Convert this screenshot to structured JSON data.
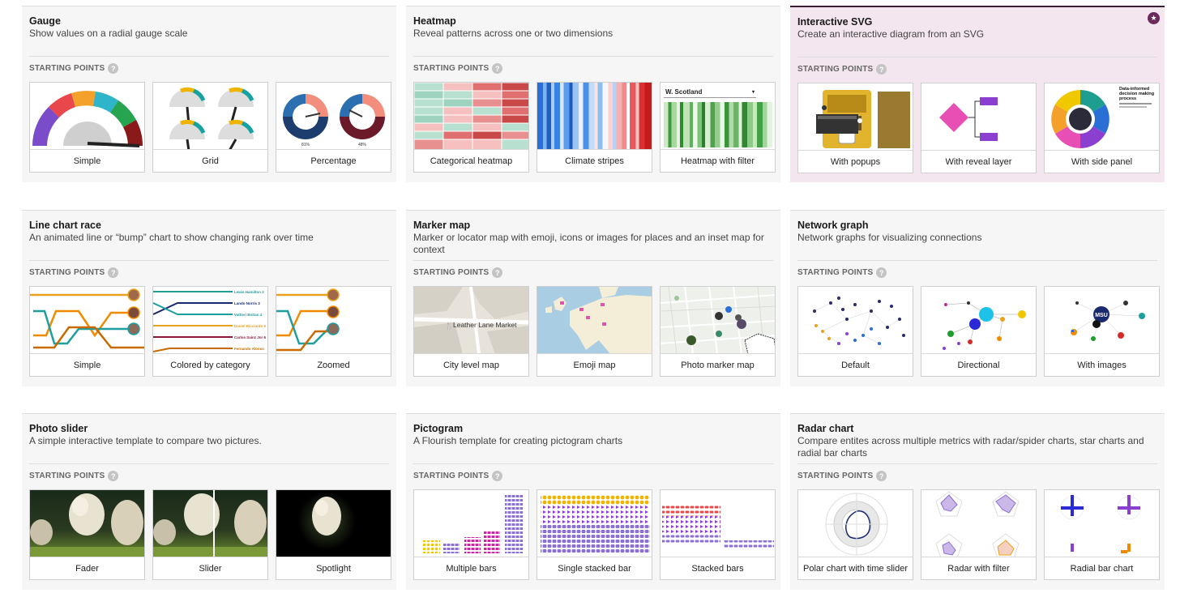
{
  "starting_points_label": "STARTING POINTS",
  "help_glyph": "?",
  "templates": [
    {
      "title": "Gauge",
      "description": "Show values on a radial gauge scale",
      "thumbs": [
        {
          "label": "Simple"
        },
        {
          "label": "Grid"
        },
        {
          "label": "Percentage",
          "values": [
            "81%",
            "48%"
          ]
        }
      ]
    },
    {
      "title": "Heatmap",
      "description": "Reveal patterns across one or two dimensions",
      "thumbs": [
        {
          "label": "Categorical heatmap"
        },
        {
          "label": "Climate stripes"
        },
        {
          "label": "Heatmap with filter",
          "filter_value": "W. Scotland"
        }
      ]
    },
    {
      "title": "Interactive SVG",
      "description": "Create an interactive diagram from an SVG",
      "highlighted": true,
      "thumbs": [
        {
          "label": "With popups"
        },
        {
          "label": "With reveal layer"
        },
        {
          "label": "With side panel",
          "panel_title": "Data-informed decision making process"
        }
      ]
    },
    {
      "title": "Line chart race",
      "description": "An animated line or “bump” chart to show changing rank over time",
      "thumbs": [
        {
          "label": "Simple"
        },
        {
          "label": "Colored by category",
          "names": [
            "Lewis Hamilton 2",
            "Lando Norris 3",
            "Valtteri Bottas 4",
            "Daniel Ricciardo 5",
            "Carlos Sainz Jnr 6",
            "Fernando Alonso"
          ]
        },
        {
          "label": "Zoomed"
        }
      ]
    },
    {
      "title": "Marker map",
      "description": "Marker or locator map with emoji, icons or images for places and an inset map for context",
      "thumbs": [
        {
          "label": "City level map",
          "place": "Leather Lane Market"
        },
        {
          "label": "Emoji map"
        },
        {
          "label": "Photo marker map"
        }
      ]
    },
    {
      "title": "Network graph",
      "description": "Network graphs for visualizing connections",
      "thumbs": [
        {
          "label": "Default"
        },
        {
          "label": "Directional"
        },
        {
          "label": "With images",
          "logo_text": "MSU"
        }
      ]
    },
    {
      "title": "Photo slider",
      "description": "A simple interactive template to compare two pictures.",
      "thumbs": [
        {
          "label": "Fader"
        },
        {
          "label": "Slider"
        },
        {
          "label": "Spotlight"
        }
      ]
    },
    {
      "title": "Pictogram",
      "description": "A Flourish template for creating pictogram charts",
      "thumbs": [
        {
          "label": "Multiple bars"
        },
        {
          "label": "Single stacked bar"
        },
        {
          "label": "Stacked bars"
        }
      ]
    },
    {
      "title": "Radar chart",
      "description": "Compare entites across multiple metrics with radar/spider charts, star charts and radial bar charts",
      "thumbs": [
        {
          "label": "Polar chart with time slider"
        },
        {
          "label": "Radar with filter"
        },
        {
          "label": "Radial bar chart"
        }
      ]
    }
  ],
  "colors": {
    "highlight_bg": "#f3e6ef",
    "accent": "#6a2a5a",
    "card_bg": "#f6f6f6"
  },
  "icons": {
    "help": "question-circle-icon",
    "badge": "star-badge-icon"
  }
}
